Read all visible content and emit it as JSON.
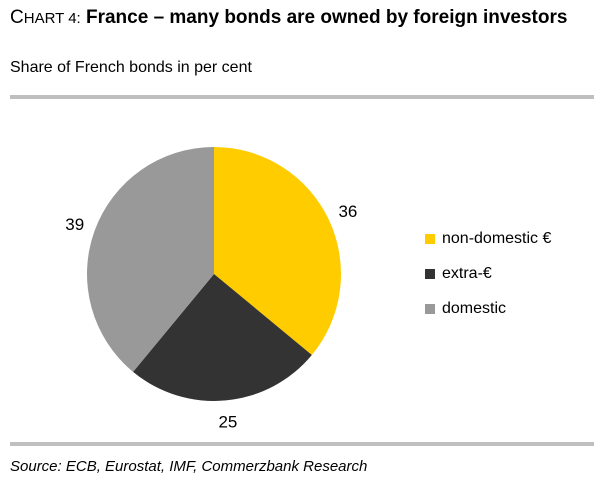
{
  "header": {
    "title_prefix_first": "C",
    "title_prefix_rest": "hart 4:",
    "title_main": "France – many bonds are owned by foreign investors",
    "subtitle": "Share of French bonds in per cent"
  },
  "footer": {
    "source": "Source: ECB, Eurostat, IMF, Commerzbank Research"
  },
  "chart_data": {
    "type": "pie",
    "title": "France – many bonds are owned by foreign investors",
    "subtitle": "Share of French bonds in per cent",
    "unit": "per cent",
    "start_angle_deg": 0,
    "direction": "clockwise",
    "legend_position": "right",
    "slices": [
      {
        "label": "non-domestic €",
        "value": 36,
        "color": "#ffcc00"
      },
      {
        "label": "extra-€",
        "value": 25,
        "color": "#333333"
      },
      {
        "label": "domestic",
        "value": 39,
        "color": "#999999"
      }
    ]
  }
}
